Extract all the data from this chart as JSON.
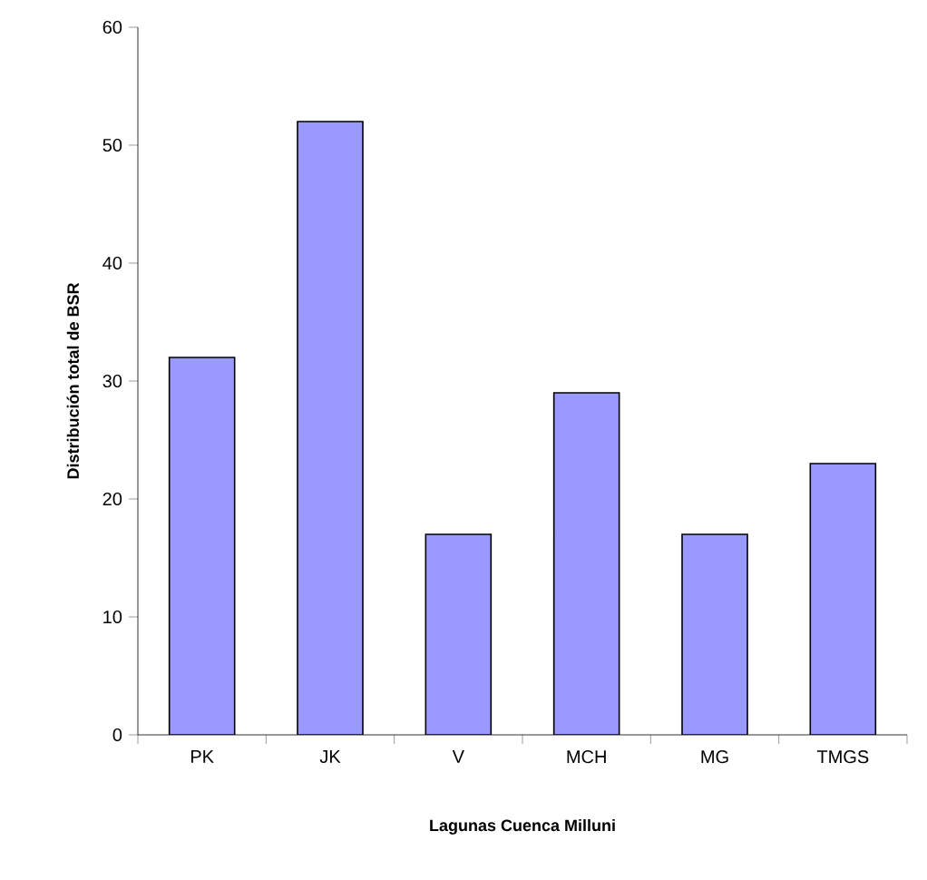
{
  "chart_data": {
    "type": "bar",
    "xlabel": "Lagunas Cuenca Milluni",
    "ylabel": "Distribución total de BSR",
    "categories": [
      "PK",
      "JK",
      "V",
      "MCH",
      "MG",
      "TMGS"
    ],
    "values": [
      32,
      52,
      17,
      29,
      17,
      23
    ],
    "color": "#9999ff",
    "ylim": [
      0,
      60
    ],
    "yticks": [
      0,
      10,
      20,
      30,
      40,
      50,
      60
    ]
  }
}
